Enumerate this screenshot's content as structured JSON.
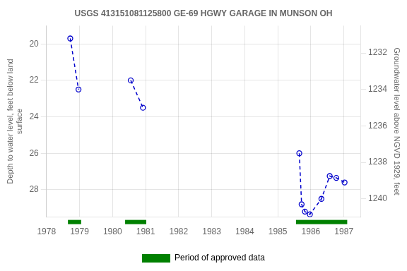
{
  "chart_data": {
    "type": "line",
    "title": "USGS 413151081125800 GE-69 HGWY GARAGE IN MUNSON OH",
    "ylabel": "Depth to water level, feet below land\nsurface",
    "y2label": "Groundwater level above NGVD 1929, feet",
    "series": [
      {
        "color": "#0000CC",
        "marker": "open_circle",
        "line_style": "dashed",
        "x": [
          1978.72,
          1978.97
        ],
        "values": [
          19.7,
          22.5
        ]
      },
      {
        "color": "#0000CC",
        "marker": "open_circle",
        "line_style": "dashed",
        "x": [
          1980.55,
          1980.92
        ],
        "values": [
          22.0,
          23.5
        ]
      },
      {
        "color": "#0000CC",
        "marker": "open_circle",
        "line_style": "dashed",
        "x": [
          1985.65,
          1985.72,
          1985.82,
          1985.97,
          1986.32,
          1986.57,
          1986.77,
          1987.02
        ],
        "values": [
          26.0,
          28.8,
          29.2,
          29.35,
          28.5,
          27.25,
          27.35,
          27.6
        ]
      }
    ],
    "periods": {
      "name": "Period of approved data",
      "color": "#008000",
      "ranges": [
        [
          1978.65,
          1979.05
        ],
        [
          1980.38,
          1981.02
        ],
        [
          1985.55,
          1987.1
        ]
      ]
    },
    "xlim": [
      1978,
      1987.5
    ],
    "xticks": [
      1978,
      1979,
      1980,
      1981,
      1982,
      1983,
      1984,
      1985,
      1986,
      1987
    ],
    "ylim": [
      29.5,
      19.0
    ],
    "yticks": [
      20.0,
      22.0,
      24.0,
      26.0,
      28.0
    ],
    "y2lim": [
      1241.0,
      1230.5
    ],
    "y2ticks": [
      1240.0,
      1238.0,
      1236.0,
      1234.0,
      1232.0
    ],
    "grid": true,
    "legend": "bottom"
  }
}
